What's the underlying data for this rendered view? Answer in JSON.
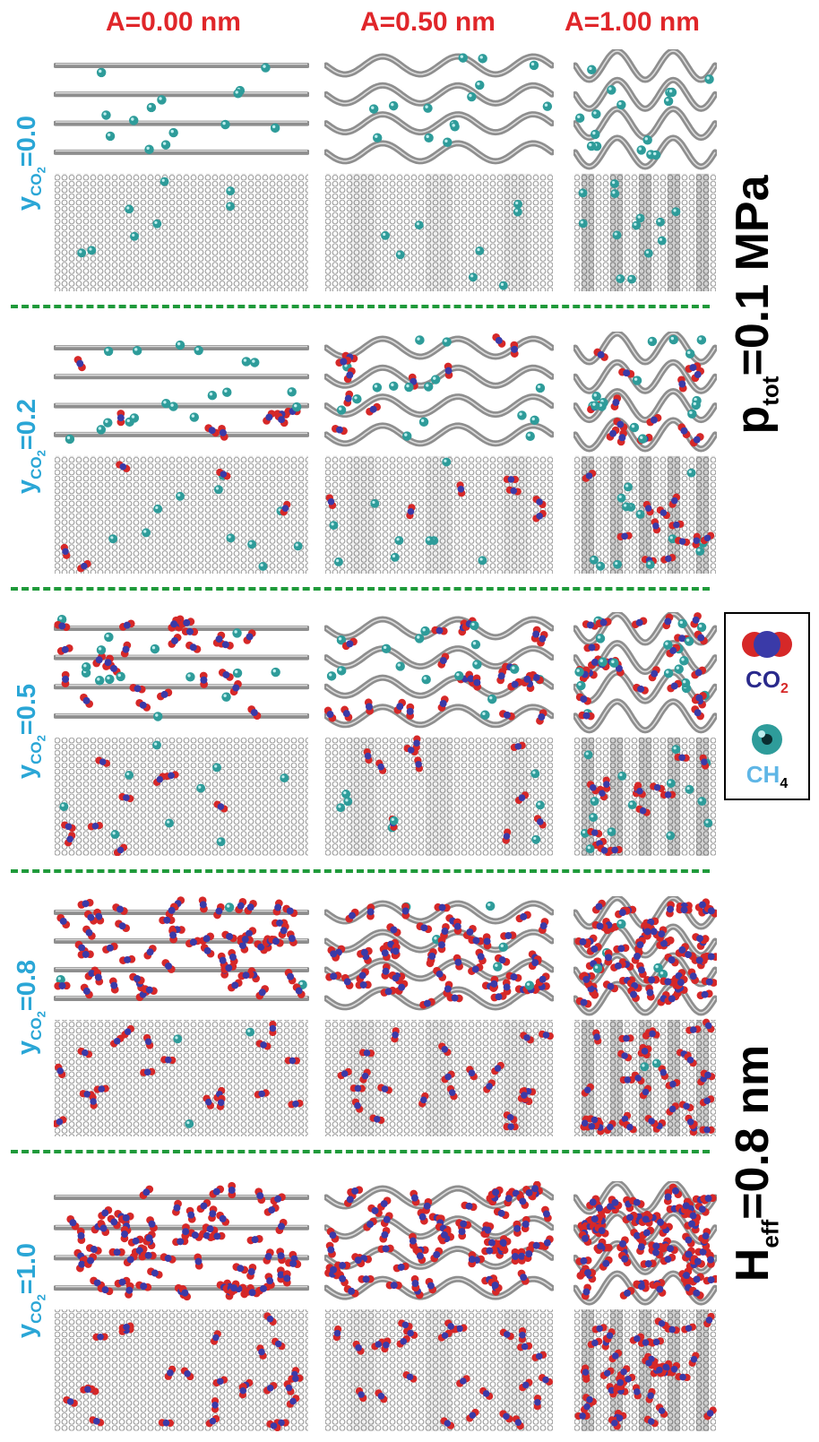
{
  "columns": [
    "A=0.00 nm",
    "A=0.50 nm",
    "A=1.00 nm"
  ],
  "rows": [
    {
      "label_main": "y",
      "label_sub": "CO",
      "label_subsub": "2",
      "label_value": "=0.0"
    },
    {
      "label_main": "y",
      "label_sub": "CO",
      "label_subsub": "2",
      "label_value": "=0.2"
    },
    {
      "label_main": "y",
      "label_sub": "CO",
      "label_subsub": "2",
      "label_value": "=0.5"
    },
    {
      "label_main": "y",
      "label_sub": "CO",
      "label_subsub": "2",
      "label_value": "=0.8"
    },
    {
      "label_main": "y",
      "label_sub": "CO",
      "label_subsub": "2",
      "label_value": "=1.0"
    }
  ],
  "side_labels": {
    "pressure_main": "p",
    "pressure_sub": "tot",
    "pressure_value": "=0.1 MPa",
    "height_main": "H",
    "height_sub": "eff",
    "height_value": "=0.8 nm"
  },
  "legend": {
    "co2_main": "CO",
    "co2_sub": "2",
    "ch4_main": "CH",
    "ch4_sub": "4"
  },
  "colors": {
    "header_text": "#e0262a",
    "row_label_text": "#2aa6d6",
    "divider": "#1f9a3a",
    "co2_oxygen": "#d62828",
    "co2_carbon": "#3a3aa8",
    "ch4": "#2e9c9a",
    "graphene": "#9a9a9a"
  }
}
